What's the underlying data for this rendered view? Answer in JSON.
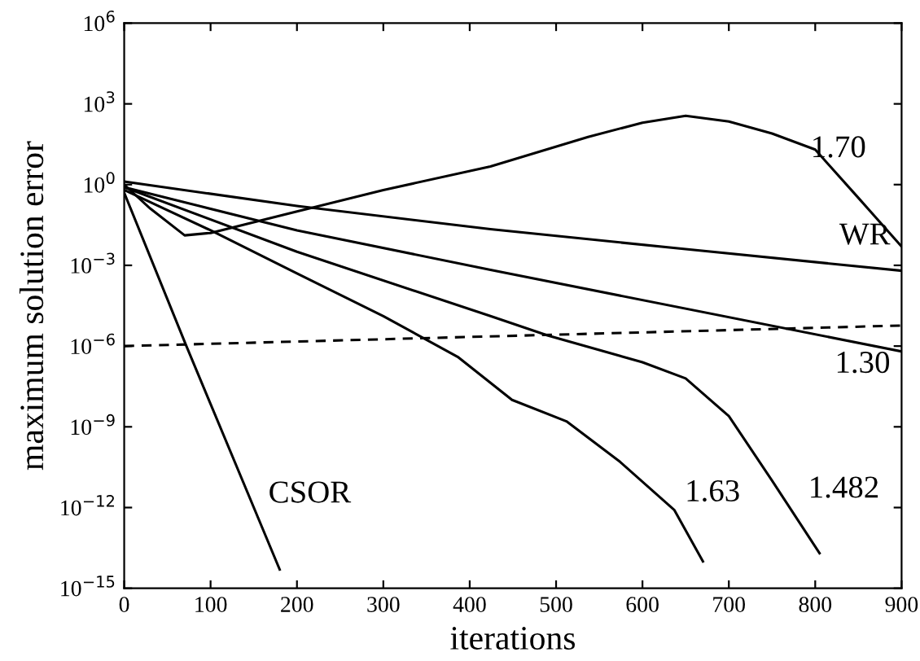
{
  "chart_data": {
    "type": "line",
    "xlabel": "iterations",
    "ylabel": "maximum solution error",
    "log": "y",
    "grid": false,
    "marker": "none",
    "xlim": [
      0,
      900
    ],
    "xticks": [
      0,
      100,
      200,
      300,
      400,
      500,
      600,
      700,
      800,
      900
    ],
    "ylim": [
      1e-15,
      1000000.0
    ],
    "yticks": [
      {
        "value": 1000000.0,
        "label": "10$^{6}$"
      },
      {
        "value": 1000.0,
        "label": "10$^{3}$"
      },
      {
        "value": 1,
        "label": "10$^{0}$"
      },
      {
        "value": 0.001,
        "label": "10$^{−3}$"
      },
      {
        "value": 1e-06,
        "label": "10$^{−6}$"
      },
      {
        "value": 1e-09,
        "label": "10$^{−9}$"
      },
      {
        "value": 1e-12,
        "label": "10$^{−12}$"
      },
      {
        "value": 1e-15,
        "label": "10$^{−15}$"
      }
    ],
    "series": [
      {
        "color": "#000000",
        "line_style": "solid",
        "x": [
          0,
          30,
          70,
          100,
          200,
          300,
          424,
          537,
          600,
          650,
          700,
          750,
          800,
          850,
          900
        ],
        "values": [
          1,
          0.13,
          0.013,
          0.016,
          0.1,
          0.63,
          4.7,
          59,
          200,
          360,
          220,
          79,
          20,
          0.32,
          0.005
        ]
      },
      {
        "color": "#000000",
        "line_style": "solid",
        "x": [
          0,
          200,
          424,
          650,
          900
        ],
        "values": [
          1.3,
          0.16,
          0.022,
          0.004,
          0.00063
        ]
      },
      {
        "color": "#000000",
        "line_style": "solid",
        "x": [
          0,
          200,
          424,
          900
        ],
        "values": [
          0.8,
          0.02,
          0.00068,
          6.3e-07
        ]
      },
      {
        "color": "#000000",
        "line_style": "solid",
        "x": [
          0,
          200,
          424,
          490,
          600,
          650,
          700,
          750,
          805
        ],
        "values": [
          0.8,
          0.0032,
          1.3e-05,
          2.5e-06,
          2.5e-07,
          6.3e-08,
          2.5e-09,
          1e-11,
          2e-14
        ]
      },
      {
        "color": "#000000",
        "line_style": "solid",
        "x": [
          0,
          100,
          200,
          300,
          386,
          449,
          512,
          574,
          637,
          670
        ],
        "values": [
          0.63,
          0.02,
          0.0005,
          1.3e-05,
          4e-07,
          1e-08,
          1.6e-09,
          5e-11,
          8e-13,
          1e-14
        ]
      },
      {
        "color": "#000000",
        "line_style": "solid",
        "x": [
          0,
          72,
          180
        ],
        "values": [
          0.5,
          1e-06,
          5e-15
        ]
      },
      {
        "color": "#000000",
        "line_style": "dashed",
        "x": [
          0,
          900
        ],
        "values": [
          1e-06,
          5.8e-06
        ]
      }
    ],
    "annotations": [
      {
        "text": "1.70",
        "x": 800,
        "y": 20
      },
      {
        "text": "WR",
        "x": 900,
        "y": 0.00063
      },
      {
        "text": "1.30",
        "x": 900,
        "y": 6.3e-07
      },
      {
        "text": "1.482",
        "x": 805,
        "y": 2e-14
      },
      {
        "text": "1.63",
        "x": 670,
        "y": 1e-14
      },
      {
        "text": "CSOR",
        "x": 180,
        "y": 5e-15
      }
    ]
  }
}
